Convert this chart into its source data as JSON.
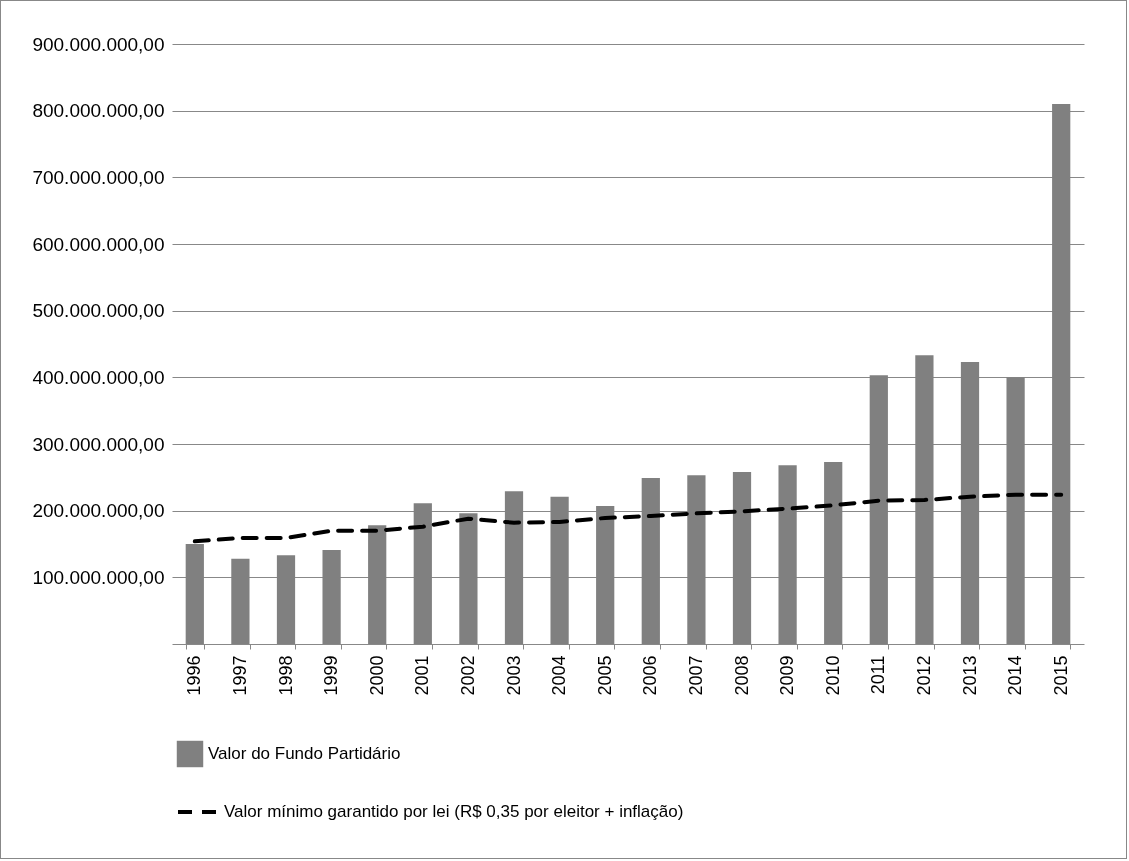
{
  "chart_data": {
    "type": "bar",
    "categories": [
      "1996",
      "1997",
      "1998",
      "1999",
      "2000",
      "2001",
      "2002",
      "2003",
      "2004",
      "2005",
      "2006",
      "2007",
      "2008",
      "2009",
      "2010",
      "2011",
      "2012",
      "2013",
      "2014",
      "2015"
    ],
    "series": [
      {
        "name": "Valor do Fundo Partidário",
        "color": "#808080",
        "values": [
          150000000,
          128000000,
          133000000,
          141000000,
          178000000,
          211000000,
          196000000,
          229000000,
          221000000,
          207000000,
          249000000,
          253000000,
          258000000,
          268000000,
          273000000,
          403000000,
          433000000,
          423000000,
          400000000,
          810000000
        ]
      },
      {
        "name": "Valor mínimo garantido por lei (R$ 0,35 por eleitor + inflação)",
        "type": "line",
        "line_style": "dashed",
        "color": "#000000",
        "values": [
          154000000,
          159000000,
          159000000,
          170000000,
          170000000,
          176000000,
          188000000,
          182000000,
          183000000,
          189000000,
          192000000,
          196000000,
          199000000,
          203000000,
          208000000,
          215000000,
          216000000,
          221000000,
          224000000,
          224000000
        ]
      }
    ],
    "ylim": [
      0,
      900000000
    ],
    "yticks": [
      {
        "value": 100000000,
        "label": "100.000.000,00"
      },
      {
        "value": 200000000,
        "label": "200.000.000,00"
      },
      {
        "value": 300000000,
        "label": "300.000.000,00"
      },
      {
        "value": 400000000,
        "label": "400.000.000,00"
      },
      {
        "value": 500000000,
        "label": "500.000.000,00"
      },
      {
        "value": 600000000,
        "label": "600.000.000,00"
      },
      {
        "value": 700000000,
        "label": "700.000.000,00"
      },
      {
        "value": 800000000,
        "label": "800.000.000,00"
      },
      {
        "value": 900000000,
        "label": "900.000.000,00"
      }
    ],
    "grid": "y",
    "legend": "bottom"
  }
}
